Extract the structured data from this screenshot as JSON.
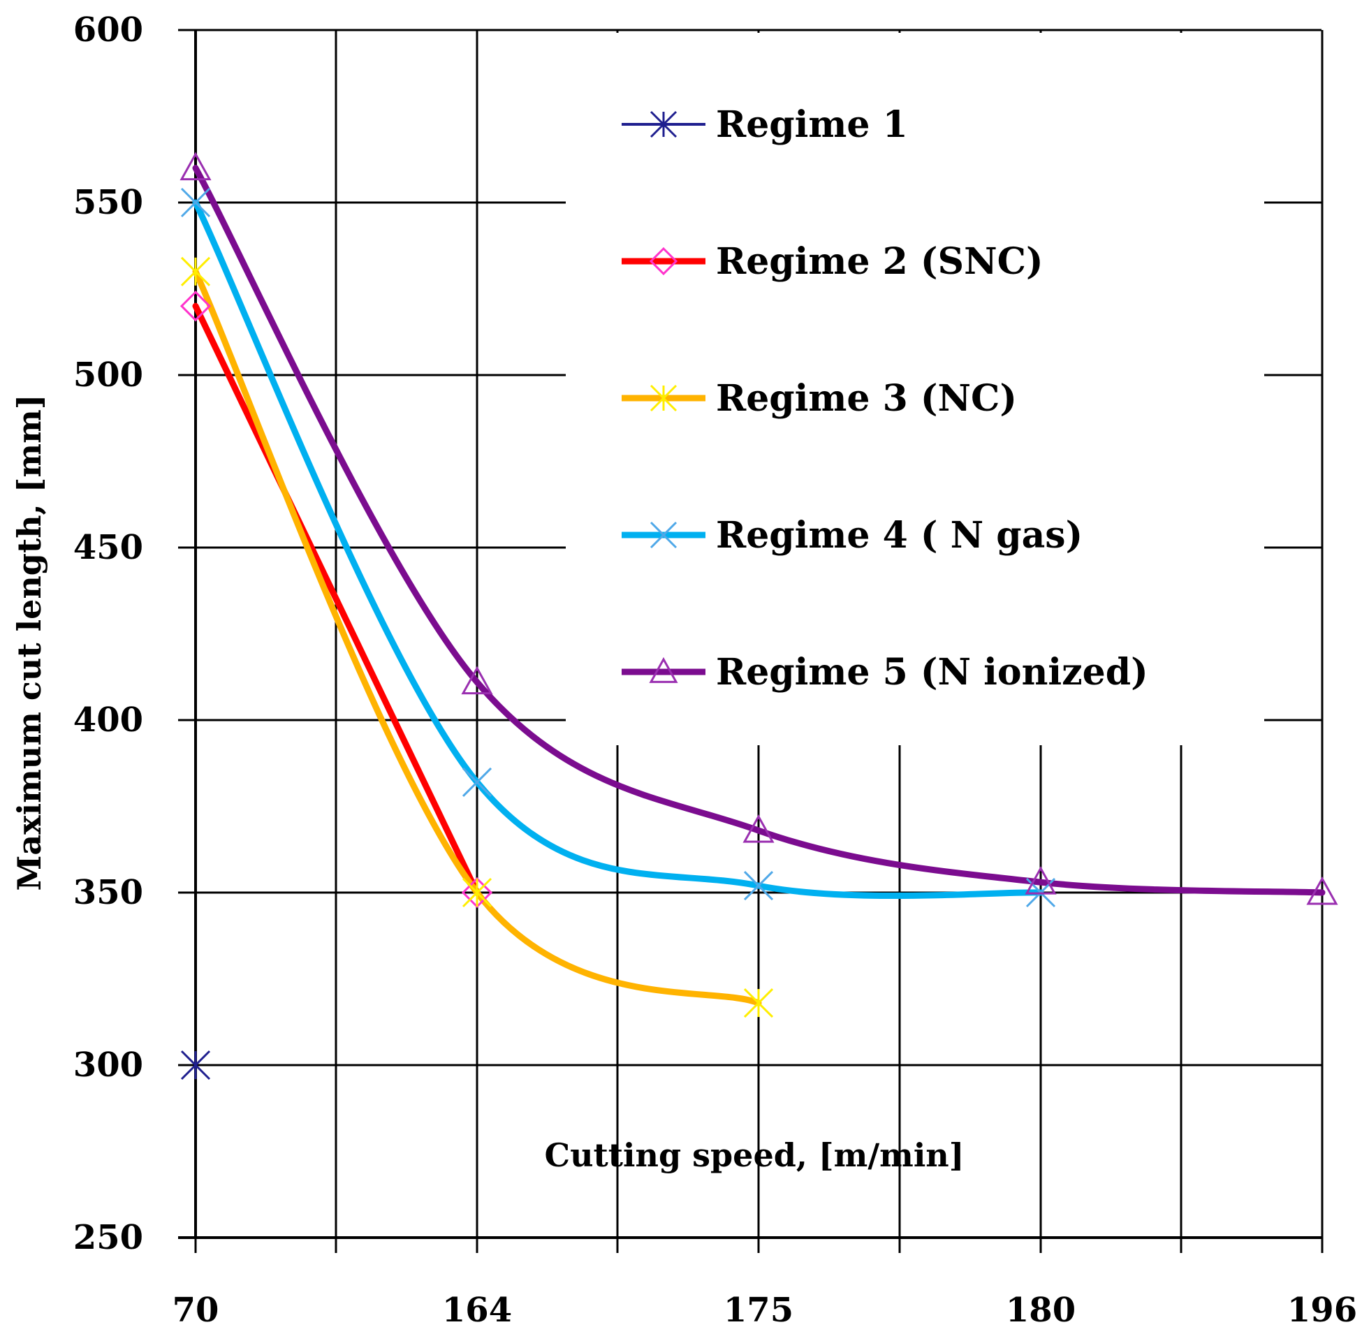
{
  "chart_data": {
    "type": "line",
    "title": "",
    "xlabel": "Cutting speed, [m/min]",
    "ylabel": "Maximum cut length, [mm]",
    "categories": [
      "70",
      "164",
      "175",
      "180",
      "196"
    ],
    "ylim": [
      250,
      600
    ],
    "yticks": [
      250,
      300,
      350,
      400,
      450,
      500,
      550,
      600
    ],
    "grid": true,
    "legend_position": "top-right",
    "series": [
      {
        "name": "Regime 1",
        "color": "#1f1f8f",
        "marker": "asterisk",
        "line": false,
        "values": [
          300,
          null,
          null,
          null,
          null
        ]
      },
      {
        "name": "Regime 2 (SNC)",
        "color": "#ff0000",
        "marker": "diamond",
        "marker_color": "#ff33cc",
        "line": true,
        "values": [
          520,
          350,
          null,
          null,
          null
        ]
      },
      {
        "name": "Regime 3 (NC)",
        "color": "#ffb300",
        "marker": "asterisk",
        "marker_color": "#ffee00",
        "line": true,
        "values": [
          530,
          350,
          318,
          null,
          null
        ]
      },
      {
        "name": "Regime 4 ( N gas)",
        "color": "#00b0f0",
        "marker": "cross",
        "marker_color": "#4fa8e8",
        "line": true,
        "values": [
          550,
          382,
          352,
          350,
          null
        ]
      },
      {
        "name": "Regime 5 (N ionized)",
        "color": "#7b0c8f",
        "marker": "triangle",
        "marker_color": "#9a2fb0",
        "line": true,
        "values": [
          560,
          411,
          368,
          353,
          350
        ]
      }
    ]
  }
}
